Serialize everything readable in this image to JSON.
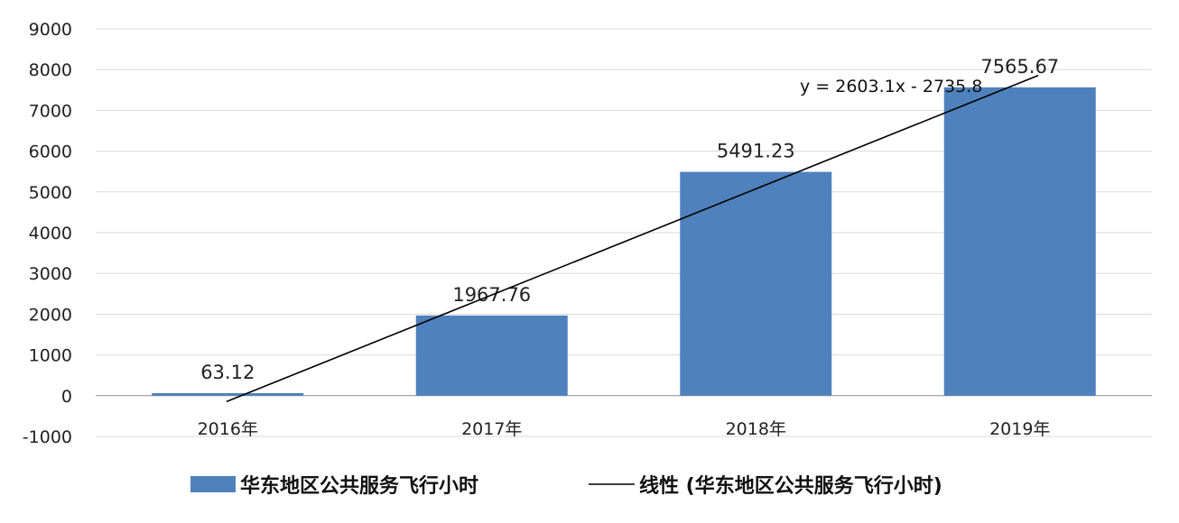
{
  "chart_data": {
    "type": "bar",
    "categories": [
      "2016年",
      "2017年",
      "2018年",
      "2019年"
    ],
    "series": [
      {
        "name": "华东地区公共服务飞行小时",
        "values": [
          63.12,
          1967.76,
          5491.23,
          7565.67
        ],
        "color": "#4f81bd"
      }
    ],
    "data_labels": [
      "63.12",
      "1967.76",
      "5491.23",
      "7565.67"
    ],
    "trendline": {
      "type": "linear",
      "name": "线性 (华东地区公共服务飞行小时)",
      "slope": 2603.1,
      "intercept": -2735.8,
      "equation": "y = 2603.1x - 2735.8",
      "color": "#000000"
    },
    "ylim": [
      -1000,
      9000
    ],
    "yticks": [
      -1000,
      0,
      1000,
      2000,
      3000,
      4000,
      5000,
      6000,
      7000,
      8000,
      9000
    ],
    "grid": true,
    "legend_position": "bottom"
  },
  "legend": {
    "bar_label": "华东地区公共服务飞行小时",
    "line_label": "线性 (华东地区公共服务飞行小时)"
  }
}
